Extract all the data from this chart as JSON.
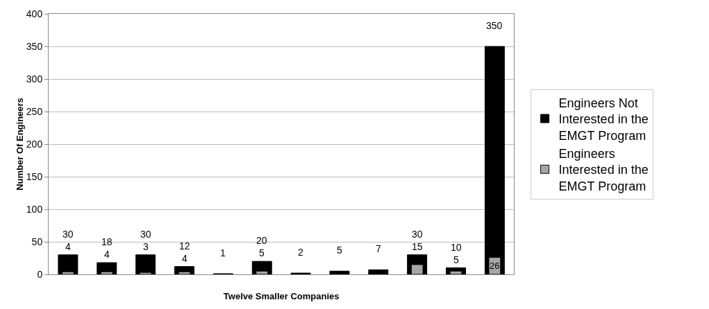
{
  "chart_data": {
    "type": "bar",
    "xlabel": "Twelve Smaller Companies",
    "ylabel": "Number Of Engineers",
    "categories": [
      null,
      null,
      null,
      null,
      null,
      null,
      null,
      null,
      null,
      null,
      null,
      null
    ],
    "series": [
      {
        "name": "Engineers Not Interested in the EMGT Program",
        "color": "#000000",
        "values": [
          30,
          18,
          30,
          12,
          1,
          20,
          2,
          5,
          7,
          30,
          10,
          350
        ]
      },
      {
        "name": "Engineers Interested in the EMGT Program",
        "color": "#a6a6a6",
        "values": [
          4,
          4,
          3,
          4,
          null,
          5,
          null,
          null,
          null,
          15,
          5,
          26
        ]
      }
    ],
    "ylim": [
      0,
      400
    ],
    "yticks": [
      0,
      50,
      100,
      150,
      200,
      250,
      300,
      350,
      400
    ],
    "grid": "y",
    "legend": "right",
    "data_labels": true,
    "tick_labels": "y"
  }
}
